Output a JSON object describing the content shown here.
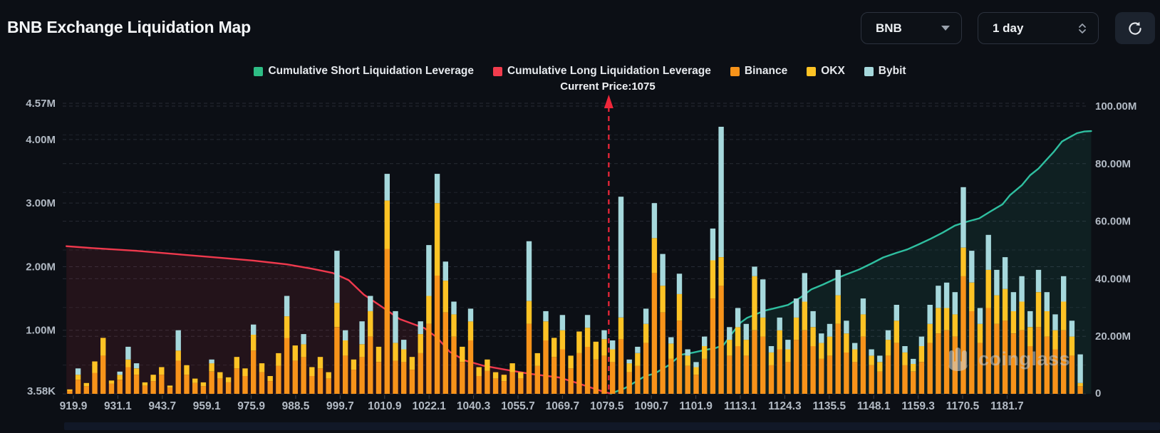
{
  "header": {
    "title": "BNB Exchange Liquidation Map"
  },
  "controls": {
    "symbol": {
      "value": "BNB"
    },
    "interval": {
      "value": "1 day"
    }
  },
  "legend": [
    {
      "label": "Cumulative Short Liquidation Leverage",
      "color": "#2ebd85"
    },
    {
      "label": "Cumulative Long Liquidation Leverage",
      "color": "#f23c4d"
    },
    {
      "label": "Binance",
      "color": "#f7931a"
    },
    {
      "label": "OKX",
      "color": "#fdc325"
    },
    {
      "label": "Bybit",
      "color": "#a6d8dc"
    }
  ],
  "annotation": {
    "current_price_label": "Current Price:1075",
    "current_price": 1075,
    "current_price_slot": 64.54,
    "arrow_color": "#f0273a"
  },
  "watermark": {
    "text": "coinglass"
  },
  "chart_data": {
    "type": "bar",
    "title": "BNB Exchange Liquidation Map",
    "grid": "dashed horizontal",
    "legend_position": "top center",
    "left_axis": {
      "max": 4.57,
      "unit": "M",
      "ticks": [
        {
          "v": 4.57,
          "label": "4.57M"
        },
        {
          "v": 4.0,
          "label": "4.00M"
        },
        {
          "v": 3.0,
          "label": "3.00M"
        },
        {
          "v": 2.0,
          "label": "2.00M"
        },
        {
          "v": 1.0,
          "label": "1.00M"
        },
        {
          "v": 0.0,
          "label": "3.58K"
        }
      ]
    },
    "right_axis": {
      "max": 100,
      "unit": "M",
      "ticks": [
        {
          "v": 100,
          "label": "100.00M"
        },
        {
          "v": 80,
          "label": "80.00M"
        },
        {
          "v": 60,
          "label": "60.00M"
        },
        {
          "v": 40,
          "label": "40.00M"
        },
        {
          "v": 20,
          "label": "20.00M"
        },
        {
          "v": 0,
          "label": "0"
        }
      ],
      "minor_grid": [
        90,
        70,
        50,
        30,
        10
      ]
    },
    "x_axis": {
      "labels": [
        "919.9",
        "931.1",
        "943.7",
        "959.1",
        "975.9",
        "988.5",
        "999.7",
        "1010.9",
        "1022.1",
        "1040.3",
        "1055.7",
        "1069.7",
        "1079.5",
        "1090.7",
        "1101.9",
        "1113.1",
        "1124.3",
        "1135.5",
        "1148.1",
        "1159.3",
        "1170.5",
        "1181.7"
      ]
    },
    "bar_series": [
      {
        "name": "Binance",
        "color": "#f7931a"
      },
      {
        "name": "OKX",
        "color": "#fdc325"
      },
      {
        "name": "Bybit",
        "color": "#a6d8dc"
      }
    ],
    "bars_unit": "M (left axis), stacked [Binance, OKX, Bybit]",
    "bars": [
      [
        0.05,
        0.02,
        0
      ],
      [
        0.22,
        0.08,
        0.1
      ],
      [
        0.12,
        0.05,
        0
      ],
      [
        0.33,
        0.18,
        0
      ],
      [
        0.6,
        0.28,
        0
      ],
      [
        0.16,
        0.05,
        0
      ],
      [
        0.22,
        0.08,
        0.05
      ],
      [
        0.42,
        0.12,
        0.2
      ],
      [
        0.3,
        0.1,
        0.08
      ],
      [
        0.13,
        0.05,
        0
      ],
      [
        0.2,
        0.1,
        0
      ],
      [
        0.3,
        0.12,
        0
      ],
      [
        0.1,
        0.03,
        0
      ],
      [
        0.52,
        0.16,
        0.32
      ],
      [
        0.3,
        0.15,
        0
      ],
      [
        0.17,
        0.07,
        0
      ],
      [
        0.12,
        0.06,
        0
      ],
      [
        0.35,
        0.13,
        0.06
      ],
      [
        0.24,
        0.1,
        0
      ],
      [
        0.18,
        0.08,
        0
      ],
      [
        0.4,
        0.18,
        0
      ],
      [
        0.28,
        0.12,
        0
      ],
      [
        0.68,
        0.25,
        0.16
      ],
      [
        0.34,
        0.14,
        0
      ],
      [
        0.2,
        0.08,
        0
      ],
      [
        0.44,
        0.2,
        0
      ],
      [
        0.88,
        0.34,
        0.32
      ],
      [
        0.52,
        0.24,
        0
      ],
      [
        0.58,
        0.2,
        0.16
      ],
      [
        0.28,
        0.14,
        0
      ],
      [
        0.4,
        0.18,
        0
      ],
      [
        0.24,
        0.1,
        0
      ],
      [
        1.05,
        0.38,
        0.82
      ],
      [
        0.6,
        0.24,
        0.16
      ],
      [
        0.38,
        0.16,
        0
      ],
      [
        0.58,
        0.2,
        0.36
      ],
      [
        0.9,
        0.4,
        0.24
      ],
      [
        0.5,
        0.24,
        0
      ],
      [
        2.28,
        0.76,
        0.42
      ],
      [
        0.52,
        0.28,
        0.5
      ],
      [
        0.5,
        0.2,
        0.15
      ],
      [
        0.38,
        0.2,
        0
      ],
      [
        0.64,
        0.3,
        0.2
      ],
      [
        1.1,
        0.44,
        0.8
      ],
      [
        1.86,
        1.14,
        0.46
      ],
      [
        1.28,
        0.5,
        0.3
      ],
      [
        0.9,
        0.35,
        0.2
      ],
      [
        0.5,
        0.24,
        0
      ],
      [
        0.84,
        0.3,
        0.2
      ],
      [
        0.28,
        0.14,
        0
      ],
      [
        0.36,
        0.18,
        0
      ],
      [
        0.24,
        0.1,
        0
      ],
      [
        0.2,
        0.1,
        0
      ],
      [
        0.34,
        0.14,
        0
      ],
      [
        0.24,
        0.1,
        0
      ],
      [
        1.1,
        0.36,
        0.94
      ],
      [
        0.44,
        0.2,
        0
      ],
      [
        0.84,
        0.3,
        0.16
      ],
      [
        0.58,
        0.3,
        0
      ],
      [
        0.7,
        0.3,
        0.24
      ],
      [
        0.4,
        0.2,
        0
      ],
      [
        0.64,
        0.34,
        0
      ],
      [
        0.74,
        0.3,
        0.2
      ],
      [
        0.54,
        0.28,
        0
      ],
      [
        0.6,
        0.26,
        0.14
      ],
      [
        0.5,
        0.2,
        0.14
      ],
      [
        0.86,
        0.34,
        1.9
      ],
      [
        0.34,
        0.14,
        0.06
      ],
      [
        0.44,
        0.2,
        0.1
      ],
      [
        0.8,
        0.3,
        0.24
      ],
      [
        1.9,
        0.55,
        0.55
      ],
      [
        1.28,
        0.42,
        0.5
      ],
      [
        0.55,
        0.24,
        0.1
      ],
      [
        1.15,
        0.42,
        0.32
      ],
      [
        0.44,
        0.16,
        0.1
      ],
      [
        0.3,
        0.12,
        0.08
      ],
      [
        0.55,
        0.2,
        0.15
      ],
      [
        1.5,
        0.6,
        0.5
      ],
      [
        1.7,
        0.45,
        2.05
      ],
      [
        0.6,
        0.25,
        0.2
      ],
      [
        0.75,
        0.3,
        0.3
      ],
      [
        0.6,
        0.25,
        0.25
      ],
      [
        1.0,
        0.85,
        0.15
      ],
      [
        0.9,
        0.3,
        0.6
      ],
      [
        0.45,
        0.2,
        0.1
      ],
      [
        0.7,
        0.3,
        0.2
      ],
      [
        0.5,
        0.2,
        0.15
      ],
      [
        0.85,
        0.35,
        0.3
      ],
      [
        1.0,
        0.45,
        0.45
      ],
      [
        0.75,
        0.3,
        0.25
      ],
      [
        0.55,
        0.25,
        0.15
      ],
      [
        0.6,
        0.3,
        0.2
      ],
      [
        1.1,
        0.45,
        0.4
      ],
      [
        0.65,
        0.3,
        0.2
      ],
      [
        0.5,
        0.2,
        0.1
      ],
      [
        0.9,
        0.35,
        0.25
      ],
      [
        0.45,
        0.15,
        0.1
      ],
      [
        0.35,
        0.15,
        0.1
      ],
      [
        0.6,
        0.25,
        0.15
      ],
      [
        0.8,
        0.35,
        0.25
      ],
      [
        0.45,
        0.2,
        0.1
      ],
      [
        0.35,
        0.12,
        0.08
      ],
      [
        0.5,
        0.25,
        0.15
      ],
      [
        0.8,
        0.3,
        0.3
      ],
      [
        0.95,
        0.4,
        0.35
      ],
      [
        1.0,
        0.35,
        0.4
      ],
      [
        0.9,
        0.35,
        0.35
      ],
      [
        1.85,
        0.45,
        0.95
      ],
      [
        1.3,
        0.45,
        0.5
      ],
      [
        0.8,
        0.3,
        0.25
      ],
      [
        1.35,
        0.6,
        0.55
      ],
      [
        1.1,
        0.45,
        0.4
      ],
      [
        1.15,
        0.5,
        0.5
      ],
      [
        0.95,
        0.35,
        0.3
      ],
      [
        1.0,
        0.45,
        0.4
      ],
      [
        0.75,
        0.3,
        0.25
      ],
      [
        1.05,
        0.55,
        0.35
      ],
      [
        0.9,
        0.4,
        0.3
      ],
      [
        0.7,
        0.3,
        0.25
      ],
      [
        1.0,
        0.45,
        0.4
      ],
      [
        0.6,
        0.3,
        0.25
      ],
      [
        0.12,
        0.05,
        0.45
      ]
    ],
    "lines": [
      {
        "name": "Cumulative Long Liquidation Leverage",
        "color": "#ef394d",
        "fill": "rgba(242,60,77,0.10)",
        "axis": "right",
        "points": [
          [
            -0.4,
            51.3
          ],
          [
            3,
            50.6
          ],
          [
            8,
            49.7
          ],
          [
            13,
            48.5
          ],
          [
            18,
            47.3
          ],
          [
            22,
            46.3
          ],
          [
            26,
            45.0
          ],
          [
            29,
            43.5
          ],
          [
            31.5,
            42.0
          ],
          [
            33.4,
            39.5
          ],
          [
            35.2,
            34.5
          ],
          [
            37,
            31.0
          ],
          [
            39.5,
            26.0
          ],
          [
            42.5,
            22.8
          ],
          [
            44,
            19.5
          ],
          [
            45.5,
            14.6
          ],
          [
            47.3,
            11.6
          ],
          [
            49.5,
            9.8
          ],
          [
            51.8,
            8.6
          ],
          [
            55,
            7.0
          ],
          [
            58.6,
            5.7
          ],
          [
            60.5,
            4.0
          ],
          [
            62.9,
            1.7
          ],
          [
            64.2,
            0.5
          ],
          [
            64.8,
            0.1
          ]
        ]
      },
      {
        "name": "Cumulative Short Liquidation Leverage",
        "color": "#2fbfa0",
        "fill": "rgba(46,189,160,0.10)",
        "axis": "right",
        "points": [
          [
            64.8,
            0.1
          ],
          [
            66.5,
            2.0
          ],
          [
            68.9,
            6.2
          ],
          [
            70,
            7.0
          ],
          [
            71.7,
            9.9
          ],
          [
            73.2,
            13.6
          ],
          [
            74.6,
            14.3
          ],
          [
            76,
            15.2
          ],
          [
            77.4,
            16.0
          ],
          [
            78.3,
            17.0
          ],
          [
            79.3,
            21.0
          ],
          [
            80.3,
            24.7
          ],
          [
            81.1,
            26.4
          ],
          [
            83.2,
            28.9
          ],
          [
            84.5,
            29.8
          ],
          [
            86,
            30.9
          ],
          [
            87.5,
            33.5
          ],
          [
            88.8,
            36.3
          ],
          [
            90.2,
            38.0
          ],
          [
            91.7,
            40.0
          ],
          [
            93,
            41.5
          ],
          [
            94.5,
            43.2
          ],
          [
            96,
            45.3
          ],
          [
            97.4,
            47.4
          ],
          [
            99,
            49.0
          ],
          [
            100.3,
            50.2
          ],
          [
            101.7,
            52.0
          ],
          [
            103.1,
            53.9
          ],
          [
            104.5,
            56.0
          ],
          [
            106,
            58.5
          ],
          [
            107.4,
            59.8
          ],
          [
            108.9,
            61.0
          ],
          [
            110.3,
            63.5
          ],
          [
            111.7,
            65.9
          ],
          [
            112.6,
            69.1
          ],
          [
            114,
            72.5
          ],
          [
            115,
            76.0
          ],
          [
            116,
            78.3
          ],
          [
            117,
            81.5
          ],
          [
            117.8,
            84.0
          ],
          [
            118.8,
            87.7
          ],
          [
            119.8,
            89.3
          ],
          [
            120.6,
            90.6
          ],
          [
            121.5,
            91.2
          ],
          [
            122.3,
            91.3
          ]
        ]
      }
    ]
  }
}
